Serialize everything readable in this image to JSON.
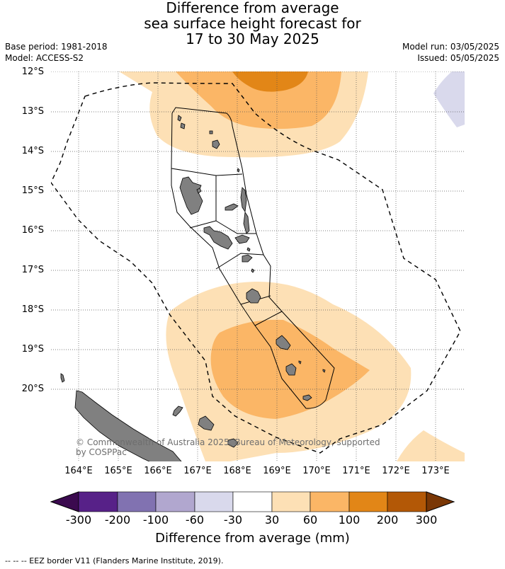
{
  "title": {
    "line1": "Difference from average",
    "line2": "sea surface height forecast for",
    "line3": "17 to 30 May 2025"
  },
  "meta": {
    "base_period": "Base period: 1981-2018",
    "model": "Model: ACCESS-S2",
    "model_run": "Model run: 03/05/2025",
    "issued": "Issued: 05/05/2025"
  },
  "map": {
    "region": "Vanuatu",
    "lat_labels": [
      "12°S",
      "13°S",
      "14°S",
      "15°S",
      "16°S",
      "17°S",
      "18°S",
      "19°S",
      "20°S"
    ],
    "lon_labels": [
      "164°E",
      "165°E",
      "166°E",
      "167°E",
      "168°E",
      "169°E",
      "170°E",
      "171°E",
      "172°E",
      "173°E"
    ],
    "copyright": "© Commonwealth of Australia 2025, Bureau of Meteorology, supported by COSPPac",
    "eez_footnote": "-- -- -- EEZ border V11 (Flanders Marine Institute, 2019).",
    "colors": {
      "land": "#808080",
      "ocean": "#ffffff",
      "grid": "#555555",
      "eez": "#000000"
    }
  },
  "colorbar": {
    "label": "Difference from average (mm)",
    "ticks": [
      "-300",
      "-200",
      "-100",
      "-60",
      "-30",
      "30",
      "60",
      "100",
      "200",
      "300"
    ],
    "under_color": "#3b0a4f",
    "over_color": "#7a3705",
    "colors": [
      "#572188",
      "#8172b1",
      "#b1a7cf",
      "#d9d9ec",
      "#ffffff",
      "#fde0b5",
      "#fbb666",
      "#e28617",
      "#b35806"
    ]
  }
}
